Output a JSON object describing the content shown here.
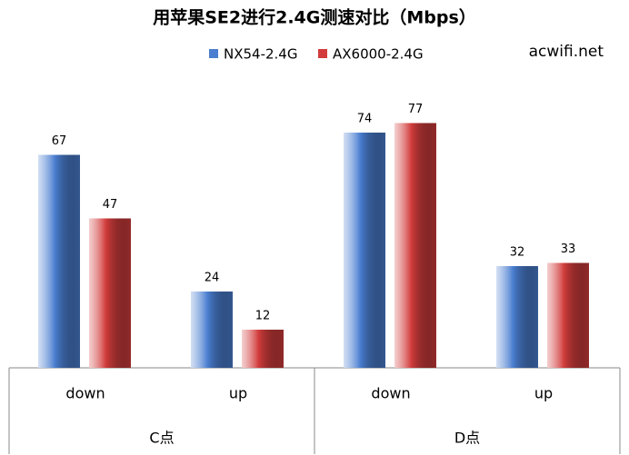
{
  "chart_data": {
    "type": "bar",
    "title": "用苹果SE2进行2.4G测速对比（Mbps）",
    "watermark": "acwifi.net",
    "categories": [
      "down",
      "up",
      "down",
      "up"
    ],
    "category_groups": [
      "C点",
      "D点"
    ],
    "series": [
      {
        "name": "NX54-2.4G",
        "color": "#4a7ed0",
        "values": [
          67,
          24,
          74,
          32
        ]
      },
      {
        "name": "AX6000-2.4G",
        "color": "#d23c3c",
        "values": [
          47,
          12,
          77,
          33
        ]
      }
    ]
  }
}
